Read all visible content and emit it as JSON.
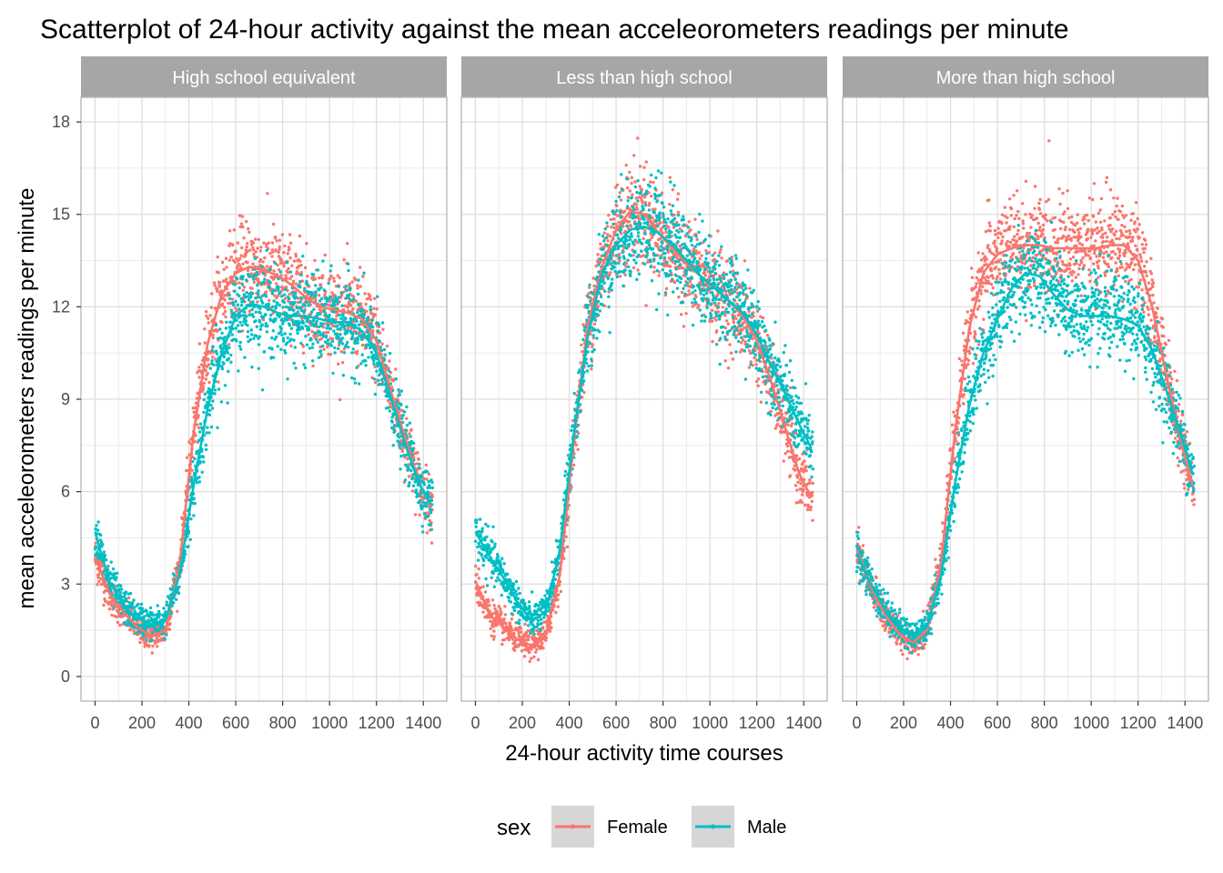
{
  "chart_data": {
    "type": "scatter",
    "title": "Scatterplot of 24-hour activity against the mean acceleorometers readings per minute",
    "xlabel": "24-hour activity time courses",
    "ylabel": "mean acceleorometers readings per minute",
    "xlim": [
      -60,
      1500
    ],
    "ylim": [
      -0.8,
      18.8
    ],
    "x_ticks": [
      0,
      200,
      400,
      600,
      800,
      1000,
      1200,
      1400
    ],
    "y_ticks": [
      0,
      3,
      6,
      9,
      12,
      15,
      18
    ],
    "grid": true,
    "legend": {
      "title": "sex",
      "position": "bottom",
      "entries": [
        {
          "name": "Female",
          "color": "#F8766D"
        },
        {
          "name": "Male",
          "color": "#00BFC4"
        }
      ]
    },
    "facets": [
      {
        "label": "High school equivalent",
        "series": [
          {
            "name": "Female",
            "color": "#F8766D",
            "x": [
              0,
              60,
              120,
              180,
              240,
              300,
              360,
              420,
              480,
              540,
              600,
              660,
              720,
              780,
              840,
              900,
              960,
              1020,
              1080,
              1140,
              1200,
              1260,
              1320,
              1380,
              1439
            ],
            "y": [
              3.9,
              2.7,
              2.1,
              1.6,
              1.3,
              1.5,
              3.6,
              7.9,
              10.8,
              12.4,
              13.1,
              13.3,
              13.2,
              13.0,
              12.7,
              12.3,
              12.0,
              11.9,
              11.8,
              11.6,
              10.9,
              9.3,
              7.8,
              6.3,
              5.4
            ]
          },
          {
            "name": "Male",
            "color": "#00BFC4",
            "x": [
              0,
              60,
              120,
              180,
              240,
              300,
              360,
              420,
              480,
              540,
              600,
              660,
              720,
              780,
              840,
              900,
              960,
              1020,
              1080,
              1140,
              1200,
              1260,
              1320,
              1380,
              1439
            ],
            "y": [
              4.7,
              3.1,
              2.3,
              1.9,
              1.7,
              1.8,
              3.3,
              6.2,
              8.7,
              10.5,
              11.7,
              12.1,
              12.0,
              11.8,
              11.7,
              11.7,
              11.6,
              11.5,
              11.5,
              11.2,
              10.5,
              9.1,
              7.6,
              6.3,
              5.5
            ]
          }
        ]
      },
      {
        "label": "Less than high school",
        "series": [
          {
            "name": "Female",
            "color": "#F8766D",
            "x": [
              0,
              60,
              120,
              180,
              240,
              300,
              360,
              420,
              480,
              540,
              600,
              660,
              720,
              780,
              840,
              900,
              960,
              1020,
              1080,
              1140,
              1200,
              1260,
              1320,
              1380,
              1439
            ],
            "y": [
              3.1,
              2.0,
              1.6,
              1.2,
              1.0,
              1.3,
              3.3,
              7.7,
              11.4,
              13.3,
              14.5,
              15.1,
              15.0,
              14.4,
              13.9,
              13.4,
              13.0,
              12.6,
              12.2,
              11.7,
              10.9,
              9.6,
              8.1,
              6.6,
              5.7
            ]
          },
          {
            "name": "Male",
            "color": "#00BFC4",
            "x": [
              0,
              60,
              120,
              180,
              240,
              300,
              360,
              420,
              480,
              540,
              600,
              660,
              720,
              780,
              840,
              900,
              960,
              1020,
              1080,
              1140,
              1200,
              1260,
              1320,
              1380,
              1439
            ],
            "y": [
              4.7,
              3.9,
              3.2,
              2.4,
              1.8,
              2.1,
              4.1,
              7.9,
              11.1,
              13.1,
              14.0,
              14.5,
              14.6,
              14.4,
              14.0,
              13.5,
              13.0,
              12.6,
              12.2,
              11.8,
              11.1,
              10.1,
              9.2,
              8.2,
              7.3
            ]
          }
        ]
      },
      {
        "label": "More than high school",
        "series": [
          {
            "name": "Female",
            "color": "#F8766D",
            "x": [
              0,
              60,
              120,
              180,
              240,
              300,
              360,
              420,
              480,
              540,
              600,
              660,
              720,
              780,
              840,
              900,
              960,
              1020,
              1080,
              1140,
              1200,
              1260,
              1320,
              1380,
              1439
            ],
            "y": [
              4.1,
              2.9,
              2.0,
              1.4,
              1.1,
              1.5,
              3.7,
              8.0,
              11.3,
              13.1,
              13.7,
              13.9,
              14.0,
              14.0,
              13.9,
              13.9,
              13.9,
              13.9,
              14.0,
              14.0,
              13.5,
              12.0,
              9.8,
              7.7,
              6.0
            ]
          },
          {
            "name": "Male",
            "color": "#00BFC4",
            "x": [
              0,
              60,
              120,
              180,
              240,
              300,
              360,
              420,
              480,
              540,
              600,
              660,
              720,
              780,
              840,
              900,
              960,
              1020,
              1080,
              1140,
              1200,
              1260,
              1320,
              1380,
              1439
            ],
            "y": [
              4.0,
              3.0,
              2.2,
              1.6,
              1.3,
              1.6,
              3.3,
              6.3,
              8.8,
              10.5,
              11.6,
              12.6,
              13.1,
              13.0,
              12.4,
              11.9,
              11.7,
              11.7,
              11.7,
              11.6,
              11.4,
              10.6,
              9.3,
              7.9,
              6.4
            ]
          }
        ]
      }
    ]
  }
}
